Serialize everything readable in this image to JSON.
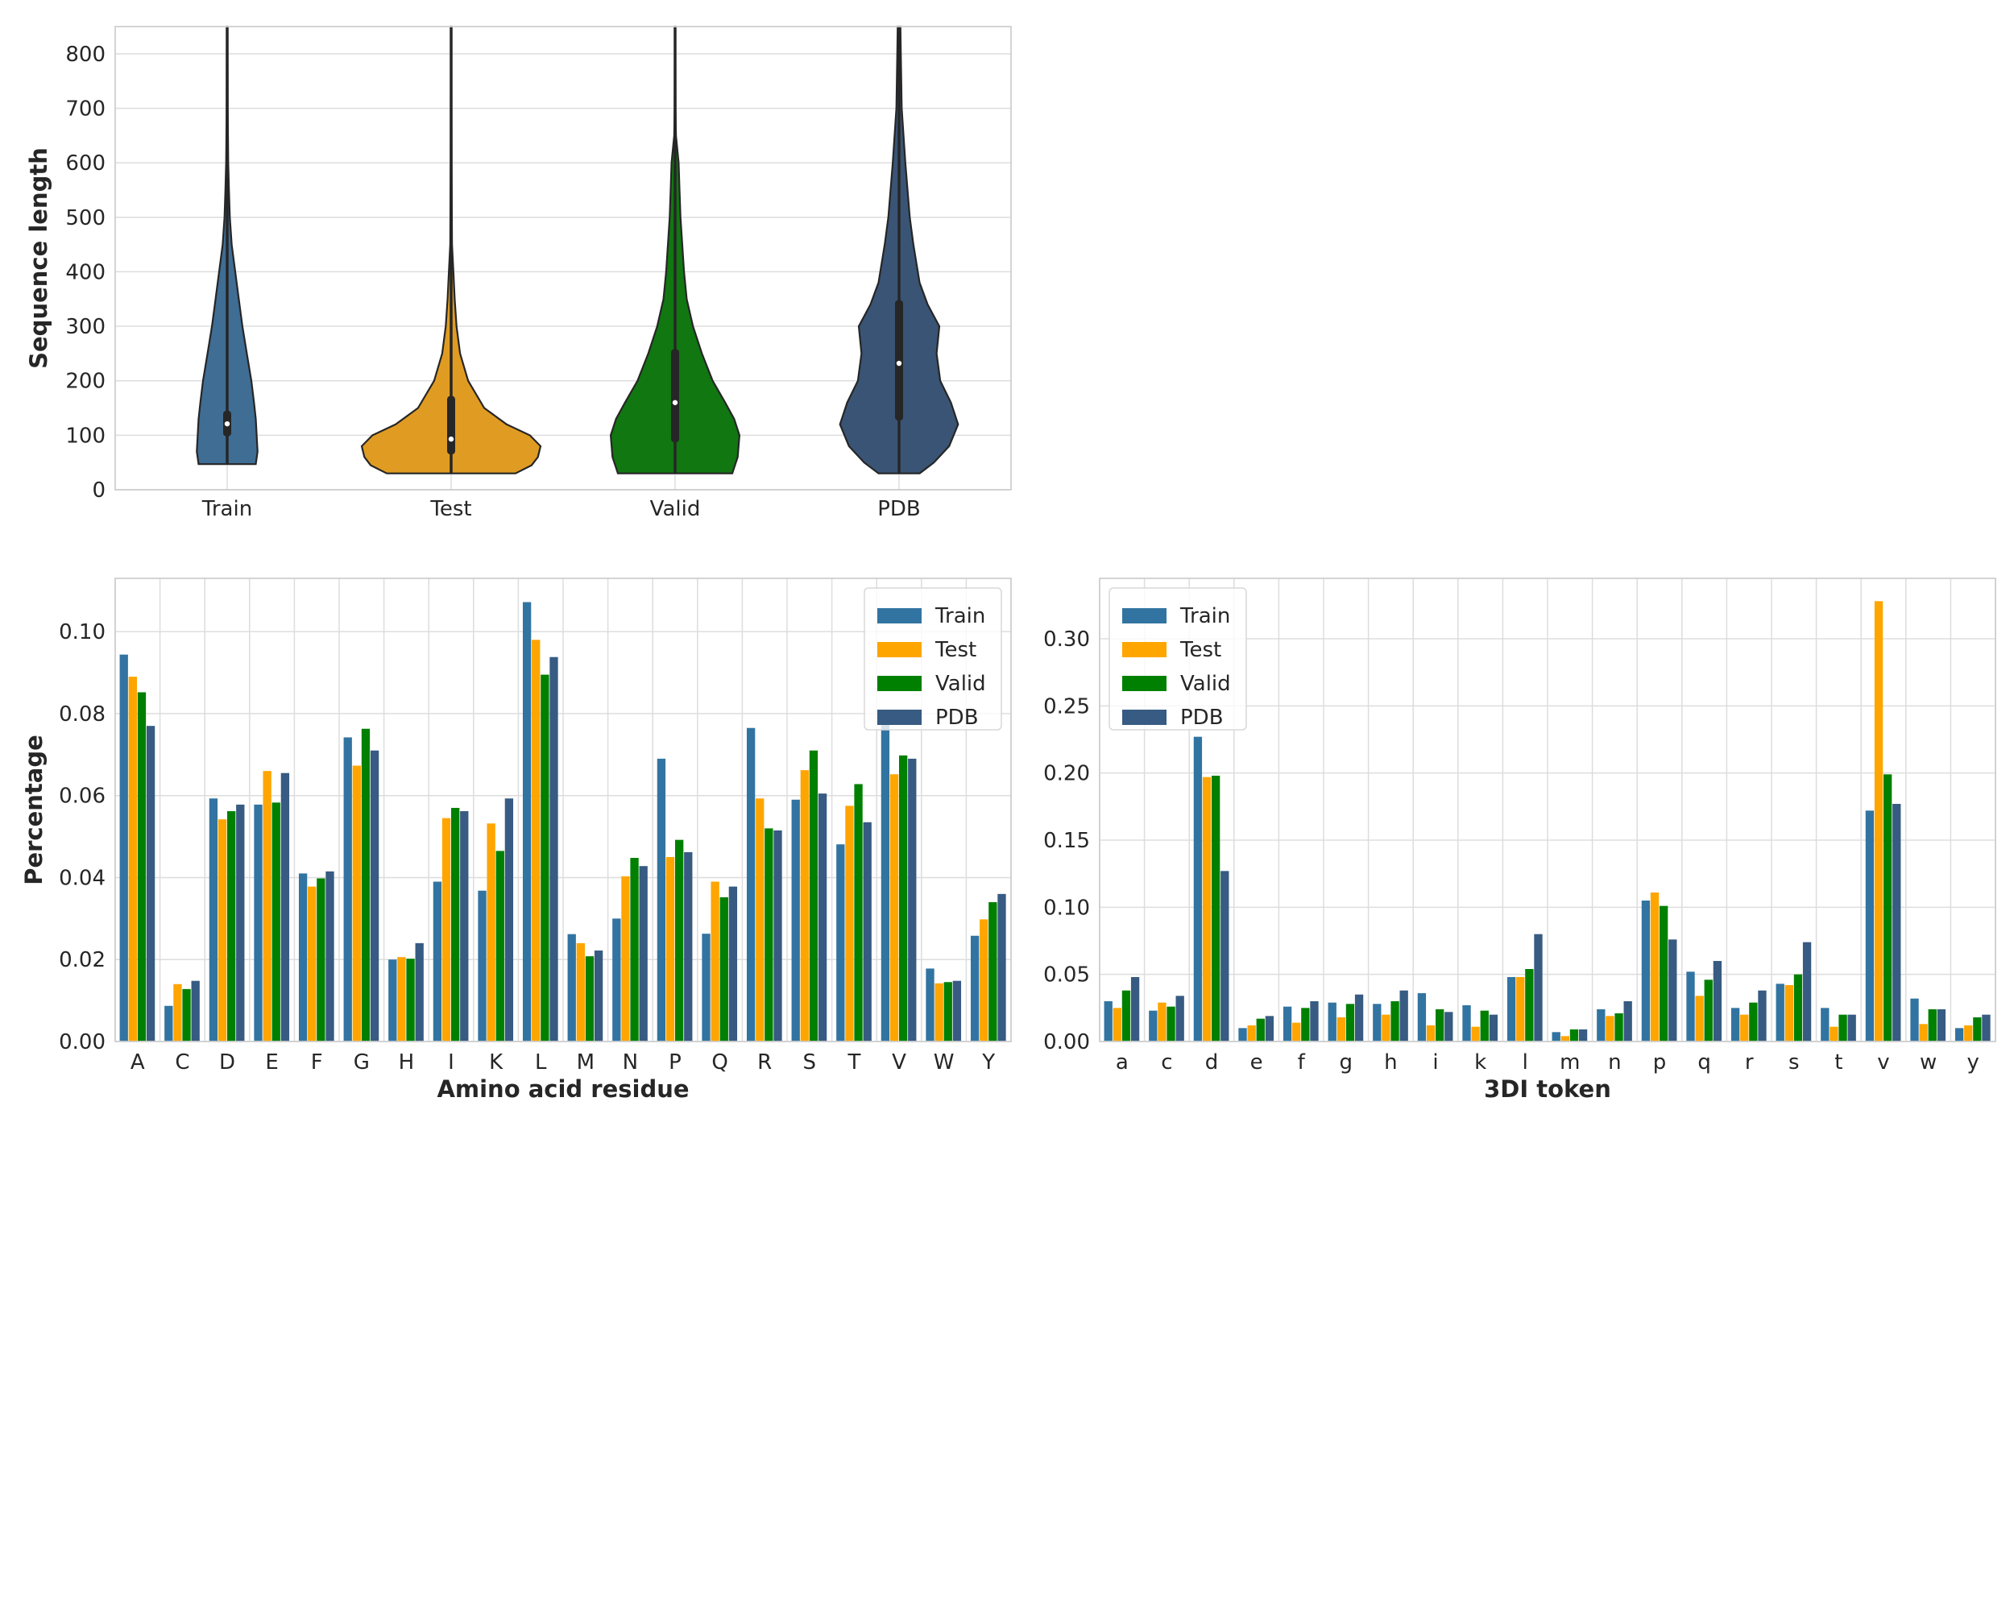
{
  "chart_data": [
    {
      "type": "violin",
      "ylabel": "Sequence length",
      "xlabel": "",
      "ylim": [
        0,
        850
      ],
      "yticks": [
        0,
        100,
        200,
        300,
        400,
        500,
        600,
        700,
        800
      ],
      "grid": true,
      "categories": [
        "Train",
        "Test",
        "Valid",
        "PDB"
      ],
      "colors": [
        "#3f6d94",
        "#e09c22",
        "#117711",
        "#3a5475"
      ],
      "violins": [
        {
          "label": "Train",
          "min": 47,
          "q1": 98,
          "median": 121,
          "q3": 145,
          "whisker_top": 850,
          "profile": [
            [
              47,
              0.32
            ],
            [
              70,
              0.34
            ],
            [
              100,
              0.33
            ],
            [
              130,
              0.32
            ],
            [
              160,
              0.3
            ],
            [
              200,
              0.27
            ],
            [
              250,
              0.22
            ],
            [
              300,
              0.17
            ],
            [
              350,
              0.13
            ],
            [
              400,
              0.09
            ],
            [
              450,
              0.05
            ],
            [
              500,
              0.03
            ],
            [
              550,
              0.02
            ],
            [
              600,
              0.012
            ],
            [
              700,
              0.006
            ],
            [
              850,
              0.004
            ]
          ]
        },
        {
          "label": "Test",
          "min": 30,
          "q1": 65,
          "median": 93,
          "q3": 172,
          "whisker_top": 850,
          "profile": [
            [
              30,
              0.72
            ],
            [
              45,
              0.9
            ],
            [
              60,
              0.97
            ],
            [
              80,
              1.0
            ],
            [
              100,
              0.88
            ],
            [
              120,
              0.62
            ],
            [
              150,
              0.37
            ],
            [
              200,
              0.19
            ],
            [
              250,
              0.1
            ],
            [
              300,
              0.06
            ],
            [
              350,
              0.04
            ],
            [
              400,
              0.025
            ],
            [
              450,
              0.01
            ],
            [
              600,
              0.005
            ],
            [
              850,
              0.003
            ]
          ]
        },
        {
          "label": "Valid",
          "min": 30,
          "q1": 87,
          "median": 160,
          "q3": 258,
          "whisker_top": 850,
          "profile": [
            [
              30,
              0.64
            ],
            [
              60,
              0.7
            ],
            [
              100,
              0.72
            ],
            [
              130,
              0.66
            ],
            [
              160,
              0.56
            ],
            [
              200,
              0.42
            ],
            [
              250,
              0.3
            ],
            [
              300,
              0.2
            ],
            [
              350,
              0.13
            ],
            [
              400,
              0.1
            ],
            [
              450,
              0.08
            ],
            [
              500,
              0.06
            ],
            [
              550,
              0.05
            ],
            [
              600,
              0.04
            ],
            [
              650,
              0.01
            ],
            [
              700,
              0.005
            ],
            [
              850,
              0.003
            ]
          ]
        },
        {
          "label": "PDB",
          "min": 30,
          "q1": 127,
          "median": 232,
          "q3": 348,
          "whisker_top": 850,
          "profile": [
            [
              30,
              0.23
            ],
            [
              50,
              0.39
            ],
            [
              80,
              0.56
            ],
            [
              120,
              0.66
            ],
            [
              160,
              0.58
            ],
            [
              200,
              0.46
            ],
            [
              250,
              0.42
            ],
            [
              300,
              0.45
            ],
            [
              340,
              0.32
            ],
            [
              380,
              0.23
            ],
            [
              450,
              0.16
            ],
            [
              500,
              0.12
            ],
            [
              600,
              0.07
            ],
            [
              700,
              0.03
            ],
            [
              800,
              0.02
            ],
            [
              850,
              0.015
            ]
          ]
        }
      ]
    },
    {
      "type": "bar",
      "xlabel": "Amino acid residue",
      "ylabel": "Percentage",
      "ylim": [
        0,
        0.113
      ],
      "yticks": [
        "0.00",
        "0.02",
        "0.04",
        "0.06",
        "0.08",
        "0.10"
      ],
      "grid": true,
      "legend": "top-right",
      "categories": [
        "A",
        "C",
        "D",
        "E",
        "F",
        "G",
        "H",
        "I",
        "K",
        "L",
        "M",
        "N",
        "P",
        "Q",
        "R",
        "S",
        "T",
        "V",
        "W",
        "Y"
      ],
      "series": [
        {
          "name": "Train",
          "color": "#3274a1",
          "values": [
            0.0944,
            0.0087,
            0.0593,
            0.0578,
            0.041,
            0.0742,
            0.02,
            0.039,
            0.0368,
            0.1072,
            0.0262,
            0.03,
            0.069,
            0.0263,
            0.0765,
            0.059,
            0.0481,
            0.0788,
            0.0178,
            0.0258
          ]
        },
        {
          "name": "Test",
          "color": "#ffa500",
          "values": [
            0.089,
            0.014,
            0.0542,
            0.066,
            0.0378,
            0.0673,
            0.0206,
            0.0545,
            0.0532,
            0.098,
            0.024,
            0.0403,
            0.045,
            0.039,
            0.0593,
            0.0662,
            0.0575,
            0.0652,
            0.0142,
            0.0298
          ]
        },
        {
          "name": "Valid",
          "color": "#008000",
          "values": [
            0.0852,
            0.0128,
            0.0562,
            0.0583,
            0.0398,
            0.0763,
            0.0202,
            0.057,
            0.0465,
            0.0895,
            0.0208,
            0.0448,
            0.0492,
            0.0352,
            0.052,
            0.071,
            0.0628,
            0.0698,
            0.0145,
            0.034
          ]
        },
        {
          "name": "PDB",
          "color": "#375b82",
          "values": [
            0.077,
            0.0148,
            0.0578,
            0.0655,
            0.0415,
            0.071,
            0.024,
            0.0562,
            0.0593,
            0.0938,
            0.0222,
            0.0428,
            0.0462,
            0.0378,
            0.0515,
            0.0605,
            0.0535,
            0.069,
            0.0148,
            0.036
          ]
        }
      ]
    },
    {
      "type": "bar",
      "xlabel": "3DI token",
      "ylabel": "",
      "ylim": [
        0,
        0.345
      ],
      "yticks": [
        "0.00",
        "0.05",
        "0.10",
        "0.15",
        "0.20",
        "0.25",
        "0.30"
      ],
      "grid": true,
      "legend": "top-left",
      "categories": [
        "a",
        "c",
        "d",
        "e",
        "f",
        "g",
        "h",
        "i",
        "k",
        "l",
        "m",
        "n",
        "p",
        "q",
        "r",
        "s",
        "t",
        "v",
        "w",
        "y"
      ],
      "series": [
        {
          "name": "Train",
          "color": "#3274a1",
          "values": [
            0.03,
            0.023,
            0.227,
            0.01,
            0.026,
            0.029,
            0.028,
            0.036,
            0.027,
            0.048,
            0.007,
            0.024,
            0.105,
            0.052,
            0.025,
            0.043,
            0.025,
            0.172,
            0.032,
            0.01
          ]
        },
        {
          "name": "Test",
          "color": "#ffa500",
          "values": [
            0.025,
            0.029,
            0.197,
            0.012,
            0.014,
            0.018,
            0.02,
            0.012,
            0.011,
            0.048,
            0.004,
            0.019,
            0.111,
            0.034,
            0.02,
            0.042,
            0.011,
            0.328,
            0.013,
            0.012
          ]
        },
        {
          "name": "Valid",
          "color": "#008000",
          "values": [
            0.038,
            0.026,
            0.198,
            0.017,
            0.025,
            0.028,
            0.03,
            0.024,
            0.023,
            0.054,
            0.009,
            0.021,
            0.101,
            0.046,
            0.029,
            0.05,
            0.02,
            0.199,
            0.024,
            0.018
          ]
        },
        {
          "name": "PDB",
          "color": "#375b82",
          "values": [
            0.048,
            0.034,
            0.127,
            0.019,
            0.03,
            0.035,
            0.038,
            0.022,
            0.02,
            0.08,
            0.009,
            0.03,
            0.076,
            0.06,
            0.038,
            0.074,
            0.02,
            0.177,
            0.024,
            0.02
          ]
        }
      ]
    }
  ]
}
